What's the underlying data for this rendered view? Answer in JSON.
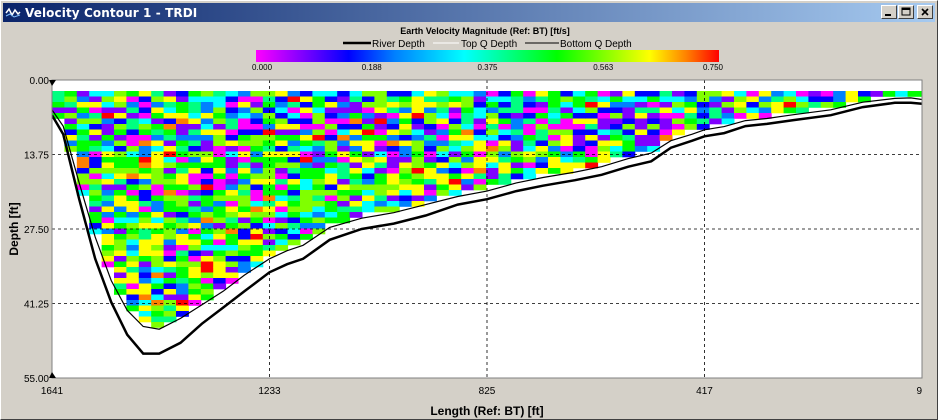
{
  "window": {
    "title": "Velocity Contour 1 - TRDI",
    "icon": "app-icon",
    "buttons": [
      "minimize-icon",
      "maximize-icon",
      "close-icon"
    ]
  },
  "plot": {
    "title": "Earth Velocity Magnitude (Ref: BT) [ft/s]",
    "legend": {
      "river_depth": "River Depth",
      "top_q": "Top Q Depth",
      "bottom_q": "Bottom Q Depth"
    },
    "colorbar": {
      "ticks": [
        "0.000",
        "0.188",
        "0.375",
        "0.563",
        "0.750"
      ],
      "range": [
        0,
        0.75
      ],
      "colors": [
        "#ff00ff",
        "#8000ff",
        "#0000ff",
        "#0080ff",
        "#00ffff",
        "#00ff80",
        "#00ff00",
        "#80ff00",
        "#ffff00",
        "#ff8000",
        "#ff0000"
      ]
    },
    "y_axis": {
      "label": "Depth [ft]",
      "ticks": [
        "0.00",
        "13.75",
        "27.50",
        "41.25",
        "55.00"
      ],
      "range": [
        0,
        55
      ]
    },
    "x_axis": {
      "label": "Length (Ref: BT) [ft]",
      "ticks": [
        "1641",
        "1233",
        "825",
        "417",
        "9"
      ],
      "range": [
        1641,
        9
      ]
    },
    "background": "#ffffff",
    "grid": "dashed"
  },
  "chart_data": {
    "type": "heatmap",
    "title": "Earth Velocity Magnitude (Ref: BT) [ft/s]",
    "xlabel": "Length (Ref: BT) [ft]",
    "ylabel": "Depth [ft]",
    "xlim": [
      1641,
      9
    ],
    "ylim": [
      0,
      55
    ],
    "value_range": [
      0,
      0.75
    ],
    "series": [
      {
        "name": "River Depth",
        "x": [
          1641,
          1620,
          1590,
          1560,
          1530,
          1500,
          1470,
          1440,
          1400,
          1360,
          1320,
          1280,
          1233,
          1200,
          1170,
          1120,
          1060,
          1000,
          940,
          880,
          825,
          770,
          720,
          660,
          610,
          560,
          517,
          480,
          440,
          417,
          380,
          340,
          300,
          250,
          180,
          120,
          60,
          30,
          9
        ],
        "y": [
          6.5,
          10,
          22,
          33,
          41,
          47,
          50.5,
          50.5,
          48.5,
          45,
          42,
          39,
          35.5,
          34,
          33,
          29.5,
          27.5,
          26.5,
          25,
          23,
          22,
          20.5,
          19.5,
          18.5,
          17.5,
          16,
          15,
          12.5,
          11.2,
          10.4,
          9.8,
          8.5,
          8.1,
          7.4,
          6.5,
          5,
          4.2,
          4.2,
          4.4
        ]
      },
      {
        "name": "Bottom Q Depth",
        "x": [
          1641,
          1620,
          1590,
          1560,
          1530,
          1500,
          1470,
          1440,
          1400,
          1360,
          1320,
          1280,
          1233,
          1200,
          1170,
          1120,
          1060,
          1000,
          940,
          880,
          825,
          770,
          720,
          660,
          610,
          560,
          517,
          480,
          440,
          417,
          380,
          340,
          300,
          250,
          180,
          120,
          60,
          30,
          9
        ],
        "y": [
          5.5,
          8.5,
          19,
          29,
          37,
          42.5,
          45.5,
          46,
          44,
          41.5,
          39,
          36,
          33,
          31.5,
          30.5,
          27.2,
          25.5,
          24.5,
          23,
          21.5,
          20.5,
          19,
          18,
          17,
          16,
          14.5,
          13.5,
          11.2,
          10,
          9.2,
          8.6,
          7.5,
          7.1,
          6.4,
          5.5,
          4.1,
          3.4,
          3.3,
          3.6
        ]
      }
    ]
  }
}
